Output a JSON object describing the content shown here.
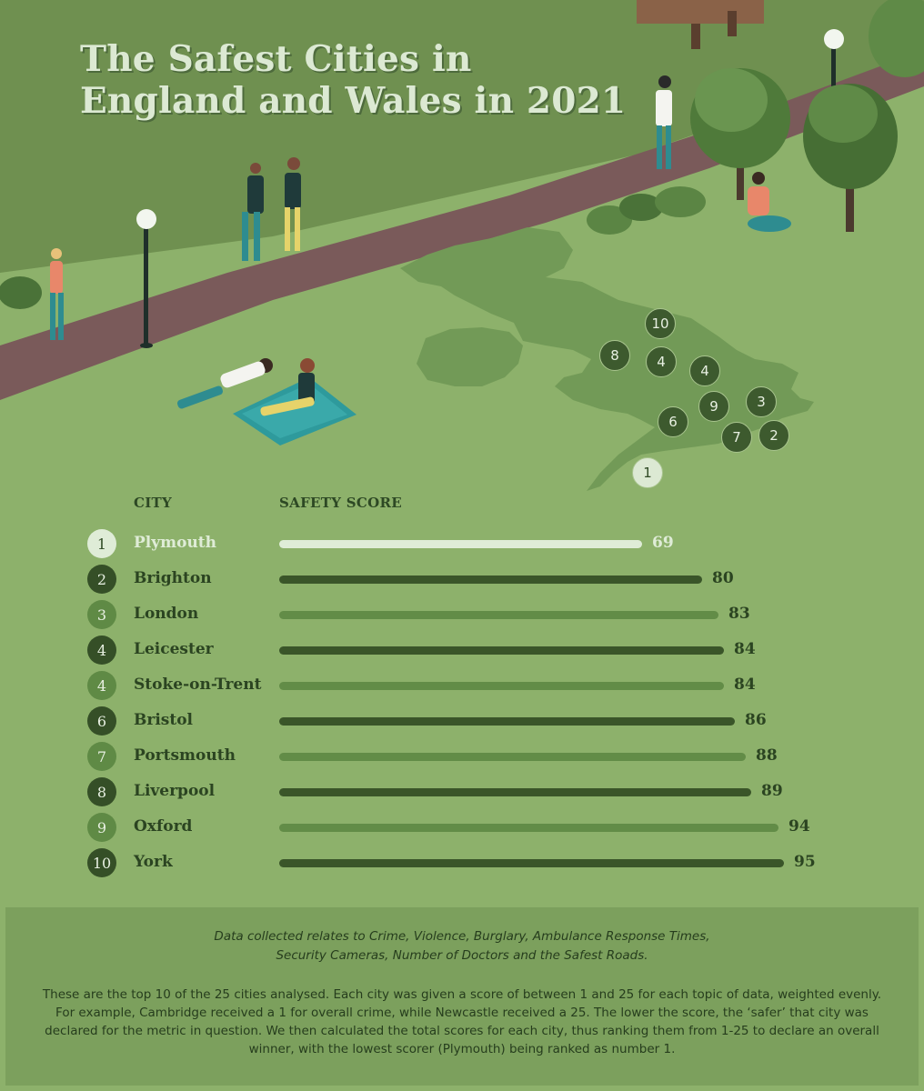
{
  "title": {
    "line1": "The Safest Cities in",
    "line2": "England and Wales in 2021"
  },
  "map_pins": [
    "10",
    "8",
    "4",
    "4",
    "9",
    "3",
    "6",
    "7",
    "2",
    "1"
  ],
  "columns": {
    "city": "CITY",
    "score": "SAFETY SCORE"
  },
  "colors": {
    "highlight": "#dfecd7",
    "dark": "#3a5529",
    "mid": "#628c47",
    "background": "#8db16b"
  },
  "chart_data": {
    "type": "bar",
    "orientation": "horizontal",
    "categories": [
      "Plymouth",
      "Brighton",
      "London",
      "Leicester",
      "Stoke-on-Trent",
      "Bristol",
      "Portsmouth",
      "Liverpool",
      "Oxford",
      "York"
    ],
    "ranks": [
      "1",
      "2",
      "3",
      "4",
      "4",
      "6",
      "7",
      "8",
      "9",
      "10"
    ],
    "values": [
      69,
      80,
      83,
      84,
      84,
      86,
      88,
      89,
      94,
      95
    ],
    "xlabel": "SAFETY SCORE",
    "ylabel": "CITY"
  },
  "footer": {
    "note_line1": "Data collected relates to Crime, Violence, Burglary, Ambulance Response Times,",
    "note_line2": "Security Cameras, Number of Doctors and the Safest Roads.",
    "body": "These are the top 10 of the 25 cities analysed. Each city was given a score of between 1 and 25 for each topic of data, weighted evenly. For example, Cambridge received a 1 for overall crime, while Newcastle received a 25. The lower the score, the ‘safer’ that city was declared for the metric in question. We then calculated the total scores for each city, thus ranking them from 1-25 to declare an overall winner, with the lowest scorer (Plymouth) being ranked as number 1."
  }
}
